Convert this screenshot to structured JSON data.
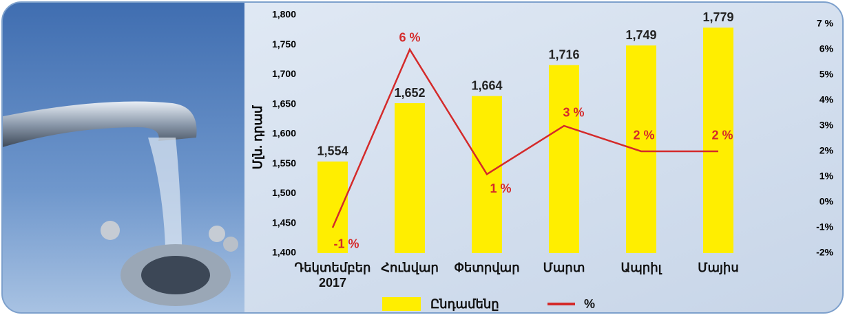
{
  "chart_data": {
    "type": "bar_line",
    "y_label": "Մլն. դրամ",
    "categories": [
      "Դեկտեմբեր 2017",
      "Հունվար",
      "Փետրվար",
      "Մարտ",
      "Ապրիլ",
      "Մայիս"
    ],
    "series": [
      {
        "name": "Ընդամենը",
        "type": "bar",
        "color": "#ffee00",
        "values": [
          1554,
          1652,
          1664,
          1716,
          1749,
          1779
        ],
        "value_labels": [
          "1,554",
          "1,652",
          "1,664",
          "1,716",
          "1,749",
          "1,779"
        ]
      },
      {
        "name": "%",
        "type": "line",
        "axis": "y2",
        "color": "#d42a2a",
        "values": [
          -1,
          6,
          1.1,
          3,
          2,
          2
        ],
        "value_labels": [
          "-1 %",
          "6 %",
          "1 %",
          "3 %",
          "2 %",
          "2 %"
        ]
      }
    ],
    "ylim": [
      1400,
      1800
    ],
    "yticks": [
      {
        "value": 1400,
        "label": "1,400"
      },
      {
        "value": 1450,
        "label": "1,450"
      },
      {
        "value": 1500,
        "label": "1,500"
      },
      {
        "value": 1550,
        "label": "1,550"
      },
      {
        "value": 1600,
        "label": "1,600"
      },
      {
        "value": 1650,
        "label": "1,650"
      },
      {
        "value": 1700,
        "label": "1,700"
      },
      {
        "value": 1750,
        "label": "1,750"
      },
      {
        "value": 1800,
        "label": "1,800"
      }
    ],
    "y2lim": [
      -2,
      7.35
    ],
    "y2ticks": [
      {
        "value": -2,
        "label": "-2%"
      },
      {
        "value": -1,
        "label": "-1%"
      },
      {
        "value": 0,
        "label": "0%"
      },
      {
        "value": 1,
        "label": "1%"
      },
      {
        "value": 2,
        "label": "2%"
      },
      {
        "value": 3,
        "label": "3%"
      },
      {
        "value": 4,
        "label": "4%"
      },
      {
        "value": 5,
        "label": "5%"
      },
      {
        "value": 6,
        "label": "6%"
      },
      {
        "value": 7,
        "label": "7 %"
      }
    ]
  }
}
